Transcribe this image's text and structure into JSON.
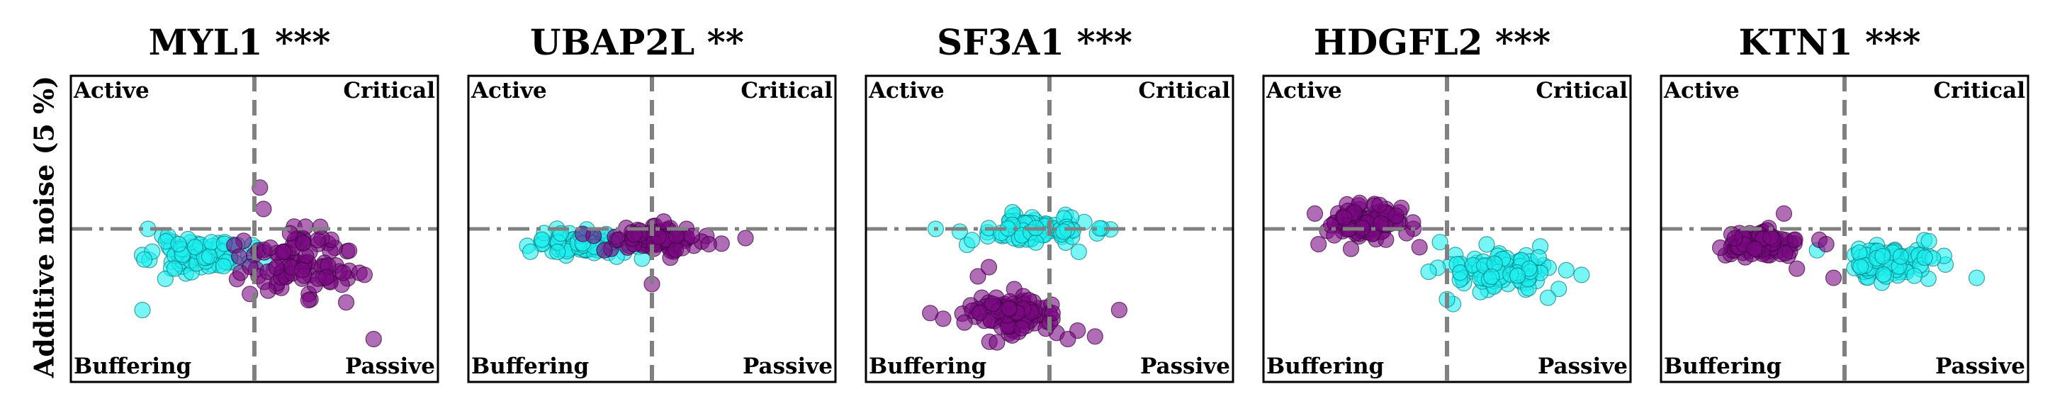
{
  "y_axis_label": "Additive noise (5 %)",
  "colors": {
    "cyan": "#1ef0f0",
    "purple": "#7b0a82",
    "guide": "#808080",
    "frame": "#000000"
  },
  "chart_data": [
    {
      "type": "scatter",
      "title": "MYL1 ***",
      "quadrants": {
        "top_left": "Active",
        "top_right": "Critical",
        "bottom_left": "Buffering",
        "bottom_right": "Passive"
      },
      "xlim": [
        -1,
        1
      ],
      "ylim": [
        -1,
        1
      ],
      "series": [
        {
          "color": "cyan",
          "center": [
            -0.3,
            -0.17
          ],
          "spread": [
            0.24,
            0.1
          ],
          "count": 90,
          "seed": 11,
          "extra": [
            [
              -0.61,
              -0.53
            ],
            [
              -0.58,
              0.0
            ],
            [
              -0.6,
              -0.2
            ]
          ]
        },
        {
          "color": "purple",
          "center": [
            0.23,
            -0.22
          ],
          "spread": [
            0.27,
            0.18
          ],
          "count": 95,
          "seed": 12,
          "extra": [
            [
              0.03,
              0.27
            ],
            [
              0.5,
              -0.48
            ],
            [
              0.65,
              -0.72
            ],
            [
              0.05,
              0.13
            ],
            [
              0.6,
              -0.3
            ]
          ]
        }
      ]
    },
    {
      "type": "scatter",
      "title": "UBAP2L **",
      "quadrants": {
        "top_left": "Active",
        "top_right": "Critical",
        "bottom_left": "Buffering",
        "bottom_right": "Passive"
      },
      "xlim": [
        -1,
        1
      ],
      "ylim": [
        -1,
        1
      ],
      "series": [
        {
          "color": "cyan",
          "center": [
            -0.38,
            -0.1
          ],
          "spread": [
            0.24,
            0.07
          ],
          "count": 95,
          "seed": 21,
          "extra": [
            [
              -0.6,
              -0.07
            ],
            [
              -0.1,
              -0.04
            ]
          ]
        },
        {
          "color": "purple",
          "center": [
            0.0,
            -0.06
          ],
          "spread": [
            0.22,
            0.07
          ],
          "count": 95,
          "seed": 22,
          "extra": [
            [
              0.51,
              -0.06
            ],
            [
              0.31,
              -0.1
            ],
            [
              0.0,
              -0.36
            ]
          ]
        }
      ]
    },
    {
      "type": "scatter",
      "title": "SF3A1 ***",
      "quadrants": {
        "top_left": "Active",
        "top_right": "Critical",
        "bottom_left": "Buffering",
        "bottom_right": "Passive"
      },
      "xlim": [
        -1,
        1
      ],
      "ylim": [
        -1,
        1
      ],
      "series": [
        {
          "color": "cyan",
          "center": [
            -0.08,
            0.0
          ],
          "spread": [
            0.26,
            0.08
          ],
          "count": 90,
          "seed": 31,
          "extra": [
            [
              -0.62,
              0.0
            ],
            [
              0.16,
              -0.15
            ]
          ]
        },
        {
          "color": "purple",
          "center": [
            -0.2,
            -0.55
          ],
          "spread": [
            0.22,
            0.12
          ],
          "count": 110,
          "seed": 32,
          "extra": [
            [
              -0.39,
              -0.31
            ],
            [
              -0.33,
              -0.25
            ],
            [
              0.38,
              -0.53
            ],
            [
              0.1,
              -0.72
            ],
            [
              -0.65,
              -0.55
            ]
          ]
        }
      ]
    },
    {
      "type": "scatter",
      "title": "HDGFL2 ***",
      "quadrants": {
        "top_left": "Active",
        "top_right": "Critical",
        "bottom_left": "Buffering",
        "bottom_right": "Passive"
      },
      "xlim": [
        -1,
        1
      ],
      "ylim": [
        -1,
        1
      ],
      "series": [
        {
          "color": "cyan",
          "center": [
            0.3,
            -0.27
          ],
          "spread": [
            0.24,
            0.12
          ],
          "count": 110,
          "seed": 41,
          "extra": [
            [
              -0.1,
              -0.28
            ],
            [
              0.65,
              -0.27
            ],
            [
              0.55,
              -0.45
            ],
            [
              0.0,
              -0.46
            ]
          ]
        },
        {
          "color": "purple",
          "center": [
            -0.45,
            0.05
          ],
          "spread": [
            0.2,
            0.1
          ],
          "count": 95,
          "seed": 42,
          "extra": [
            [
              -0.72,
              0.1
            ],
            [
              -0.15,
              -0.12
            ],
            [
              -0.7,
              -0.1
            ]
          ]
        }
      ]
    },
    {
      "type": "scatter",
      "title": "KTN1 ***",
      "quadrants": {
        "top_left": "Active",
        "top_right": "Critical",
        "bottom_left": "Buffering",
        "bottom_right": "Passive"
      },
      "xlim": [
        -1,
        1
      ],
      "ylim": [
        -1,
        1
      ],
      "series": [
        {
          "color": "cyan",
          "center": [
            0.23,
            -0.22
          ],
          "spread": [
            0.2,
            0.1
          ],
          "count": 95,
          "seed": 51,
          "extra": [
            [
              0.72,
              -0.32
            ],
            [
              0.46,
              -0.08
            ],
            [
              -0.15,
              -0.14
            ]
          ]
        },
        {
          "color": "purple",
          "center": [
            -0.43,
            -0.1
          ],
          "spread": [
            0.16,
            0.08
          ],
          "count": 100,
          "seed": 52,
          "extra": [
            [
              -0.33,
              0.1
            ],
            [
              -0.06,
              -0.32
            ],
            [
              -0.26,
              -0.26
            ],
            [
              -0.1,
              -0.1
            ]
          ]
        }
      ]
    }
  ]
}
